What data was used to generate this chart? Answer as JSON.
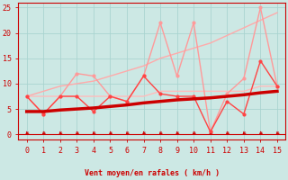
{
  "bg_color": "#cce8e4",
  "grid_color": "#aad4d0",
  "xlabel": "Vent moyen/en rafales ( km/h )",
  "xlabel_color": "#cc0000",
  "tick_color": "#cc0000",
  "xlim": [
    -0.5,
    15.5
  ],
  "ylim": [
    -1,
    26
  ],
  "yticks": [
    0,
    5,
    10,
    15,
    20,
    25
  ],
  "xticks": [
    0,
    1,
    2,
    3,
    4,
    5,
    6,
    7,
    8,
    9,
    10,
    11,
    12,
    13,
    14,
    15
  ],
  "line_diagonal": {
    "x": [
      0,
      1,
      2,
      3,
      4,
      5,
      6,
      7,
      8,
      9,
      10,
      11,
      12,
      13,
      14,
      15
    ],
    "y": [
      7.5,
      8.5,
      9.5,
      10.0,
      10.5,
      11.5,
      12.5,
      13.5,
      15.0,
      16.0,
      17.0,
      18.0,
      19.5,
      21.0,
      22.5,
      24.0
    ],
    "color": "#ffaaaa",
    "lw": 1.0
  },
  "line_rafales": {
    "x": [
      0,
      1,
      2,
      3,
      4,
      5,
      6,
      7,
      8,
      9,
      10,
      11,
      12,
      13,
      14,
      15
    ],
    "y": [
      7.5,
      4.0,
      7.5,
      12.0,
      11.5,
      7.5,
      6.5,
      11.5,
      22.0,
      11.5,
      22.0,
      0.5,
      8.0,
      11.0,
      25.0,
      9.5
    ],
    "color": "#ff9999",
    "lw": 1.0,
    "marker": "o",
    "markersize": 2.0
  },
  "line_moyen": {
    "x": [
      0,
      1,
      2,
      3,
      4,
      5,
      6,
      7,
      8,
      9,
      10,
      11,
      12,
      13,
      14,
      15
    ],
    "y": [
      7.5,
      4.0,
      7.5,
      7.5,
      4.5,
      7.5,
      6.5,
      11.5,
      8.0,
      7.5,
      7.5,
      0.5,
      6.5,
      4.0,
      14.5,
      9.5
    ],
    "color": "#ff4444",
    "lw": 1.0,
    "marker": "o",
    "markersize": 2.0
  },
  "line_trend": {
    "x": [
      0,
      1,
      2,
      3,
      4,
      5,
      6,
      7,
      8,
      9,
      10,
      11,
      12,
      13,
      14,
      15
    ],
    "y": [
      4.5,
      4.5,
      4.8,
      5.0,
      5.2,
      5.5,
      5.8,
      6.2,
      6.5,
      6.8,
      7.0,
      7.2,
      7.5,
      7.8,
      8.2,
      8.5
    ],
    "color": "#cc0000",
    "lw": 2.5
  },
  "line_flat": {
    "x": [
      0,
      1,
      2,
      3,
      4,
      5,
      6,
      7,
      8,
      9,
      10,
      11,
      12,
      13,
      14,
      15
    ],
    "y": [
      7.5,
      7.5,
      7.5,
      7.5,
      7.5,
      7.5,
      7.5,
      7.5,
      8.5,
      8.5,
      8.5,
      8.5,
      8.5,
      8.5,
      9.5,
      9.5
    ],
    "color": "#ffbbbb",
    "lw": 1.0
  },
  "arrow_color": "#cc0000"
}
